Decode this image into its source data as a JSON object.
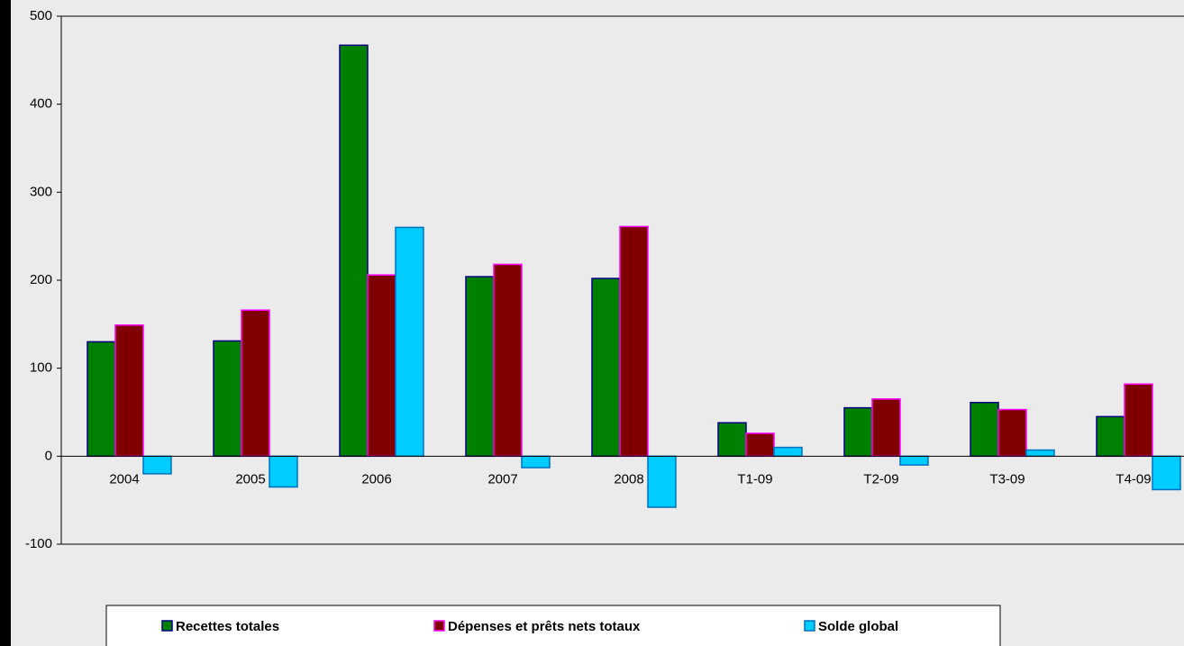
{
  "chart_data": {
    "type": "bar",
    "categories": [
      "2004",
      "2005",
      "2006",
      "2007",
      "2008",
      "T1-09",
      "T2-09",
      "T3-09",
      "T4-09"
    ],
    "series": [
      {
        "name": "Recettes totales",
        "color": "#008000",
        "stroke": "#000080",
        "values": [
          130,
          131,
          467,
          204,
          202,
          38,
          55,
          61,
          45
        ]
      },
      {
        "name": "Dépenses et prêts nets totaux",
        "color": "#800000",
        "stroke": "#ff00ff",
        "values": [
          149,
          166,
          206,
          218,
          261,
          26,
          65,
          53,
          82
        ]
      },
      {
        "name": "Solde global",
        "color": "#00ccff",
        "stroke": "#0070c0",
        "values": [
          -20,
          -35,
          260,
          -13,
          -58,
          10,
          -10,
          7,
          -38
        ]
      }
    ],
    "ylim": [
      -100,
      500
    ],
    "yticks": [
      -100,
      0,
      100,
      200,
      300,
      400,
      500
    ],
    "grid": false,
    "legend": "bottom"
  }
}
